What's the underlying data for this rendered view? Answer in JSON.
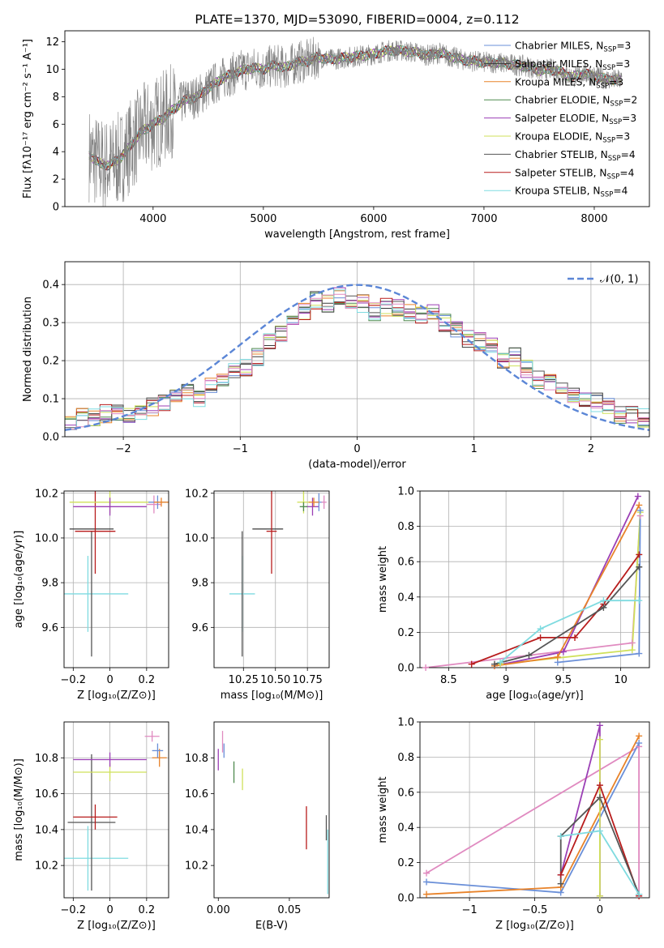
{
  "chart_data": [
    {
      "id": "spectrum",
      "type": "line",
      "title": "PLATE=1370, MJD=53090, FIBERID=0004, z=0.112",
      "xlabel": "wavelength [Angstrom, rest frame]",
      "ylabel": "Flux [fλ10⁻¹⁷ erg cm⁻² s⁻¹ A⁻¹]",
      "xlim": [
        3200,
        8500
      ],
      "ylim": [
        0,
        12.8
      ],
      "xticks": [
        4000,
        5000,
        6000,
        7000,
        8000
      ],
      "yticks": [
        0,
        2,
        4,
        6,
        8,
        10,
        12
      ],
      "grid": false,
      "legend_position": "top-right",
      "data_x": [
        3420,
        3500,
        3600,
        3700,
        3800,
        3900,
        4000,
        4100,
        4200,
        4300,
        4400,
        4500,
        4600,
        4700,
        4800,
        4900,
        5000,
        5100,
        5200,
        5300,
        5400,
        5500,
        5600,
        5700,
        5800,
        5900,
        6000,
        6100,
        6200,
        6300,
        6400,
        6500,
        6600,
        6700,
        6800,
        6900,
        7000,
        7100,
        7200,
        7300,
        7400,
        7500,
        7600,
        7700,
        7800,
        7900,
        8000,
        8100,
        8200
      ],
      "data_y": [
        3.8,
        3.2,
        3.0,
        3.5,
        4.5,
        5.5,
        6.0,
        6.5,
        7.2,
        7.8,
        8.0,
        8.6,
        9.2,
        9.6,
        9.9,
        10.1,
        10.0,
        10.3,
        10.1,
        10.5,
        10.6,
        10.9,
        10.7,
        10.8,
        10.9,
        11.0,
        11.1,
        11.3,
        11.4,
        11.3,
        11.2,
        11.0,
        11.2,
        10.9,
        10.7,
        10.6,
        10.5,
        10.5,
        10.4,
        10.3,
        10.2,
        9.9,
        10.0,
        9.8,
        9.4,
        9.7,
        9.5,
        9.3,
        9.2
      ],
      "series": [
        {
          "name": "Chabrier MILES, N_SSP=3",
          "color": "#6a8fd8"
        },
        {
          "name": "Salpeter MILES, N_SSP=3",
          "color": "#3a3a3a"
        },
        {
          "name": "Kroupa MILES, N_SSP=3",
          "color": "#e8832a"
        },
        {
          "name": "Chabrier ELODIE, N_SSP=2",
          "color": "#4f8a4f"
        },
        {
          "name": "Salpeter ELODIE, N_SSP=3",
          "color": "#9b3fb5"
        },
        {
          "name": "Kroupa ELODIE, N_SSP=3",
          "color": "#cfe05a"
        },
        {
          "name": "Chabrier STELIB, N_SSP=4",
          "color": "#555555"
        },
        {
          "name": "Salpeter STELIB, N_SSP=4",
          "color": "#b81c1c"
        },
        {
          "name": "Kroupa STELIB, N_SSP=4",
          "color": "#7fdbe0"
        }
      ]
    },
    {
      "id": "residuals",
      "type": "line",
      "xlabel": "(data-model)/error",
      "ylabel": "Normed distribution",
      "xlim": [
        -2.5,
        2.5
      ],
      "ylim": [
        0,
        0.46
      ],
      "xticks": [
        -2,
        -1,
        0,
        1,
        2
      ],
      "yticks": [
        0.0,
        0.1,
        0.2,
        0.3,
        0.4
      ],
      "grid": true,
      "legend_label": "𝒩(0, 1)",
      "gaussian_color": "#5b86d6",
      "hist_bins_x": [
        -2.5,
        -2.4,
        -2.3,
        -2.2,
        -2.1,
        -2.0,
        -1.9,
        -1.8,
        -1.7,
        -1.6,
        -1.5,
        -1.4,
        -1.3,
        -1.2,
        -1.1,
        -1.0,
        -0.9,
        -0.8,
        -0.7,
        -0.6,
        -0.5,
        -0.4,
        -0.3,
        -0.2,
        -0.1,
        0.0,
        0.1,
        0.2,
        0.3,
        0.4,
        0.5,
        0.6,
        0.7,
        0.8,
        0.9,
        1.0,
        1.1,
        1.2,
        1.3,
        1.4,
        1.5,
        1.6,
        1.7,
        1.8,
        1.9,
        2.0,
        2.1,
        2.2,
        2.3,
        2.4
      ],
      "hist_base": [
        0.04,
        0.05,
        0.05,
        0.06,
        0.06,
        0.05,
        0.06,
        0.08,
        0.09,
        0.11,
        0.12,
        0.1,
        0.13,
        0.14,
        0.17,
        0.18,
        0.21,
        0.25,
        0.27,
        0.3,
        0.33,
        0.36,
        0.35,
        0.37,
        0.36,
        0.35,
        0.33,
        0.34,
        0.34,
        0.33,
        0.32,
        0.33,
        0.3,
        0.28,
        0.26,
        0.25,
        0.24,
        0.2,
        0.21,
        0.18,
        0.15,
        0.14,
        0.12,
        0.11,
        0.1,
        0.09,
        0.08,
        0.06,
        0.06,
        0.05
      ]
    },
    {
      "id": "age_vs_Z",
      "type": "scatter",
      "xlabel": "Z [log₁₀(Z/Z⊙)]",
      "ylabel": "age  [log₁₀(age/yr)]",
      "xlim": [
        -0.25,
        0.32
      ],
      "ylim": [
        9.42,
        10.21
      ],
      "xticks": [
        -0.2,
        0.0,
        0.2
      ],
      "yticks": [
        9.6,
        9.8,
        10.0,
        10.2
      ],
      "grid": true,
      "points": [
        {
          "x": -0.12,
          "y": 9.75,
          "xerr": 0.22,
          "yerr": 0.17,
          "color": "#7fdbe0"
        },
        {
          "x": -0.1,
          "y": 9.75,
          "xerr": 0.0,
          "yerr": 0.28,
          "color": "#555555"
        },
        {
          "x": -0.1,
          "y": 10.04,
          "xerr": 0.12,
          "yerr": 0.0,
          "color": "#3a3a3a"
        },
        {
          "x": -0.08,
          "y": 10.03,
          "xerr": 0.11,
          "yerr": 0.19,
          "color": "#b81c1c"
        },
        {
          "x": 0.0,
          "y": 10.16,
          "xerr": 0.22,
          "yerr": 0.05,
          "color": "#cfe05a"
        },
        {
          "x": 0.0,
          "y": 10.14,
          "xerr": 0.2,
          "yerr": 0.04,
          "color": "#9b3fb5"
        },
        {
          "x": 0.24,
          "y": 10.15,
          "xerr": 0.04,
          "yerr": 0.04,
          "color": "#e08ac0"
        },
        {
          "x": 0.26,
          "y": 10.16,
          "xerr": 0.05,
          "yerr": 0.03,
          "color": "#6a8fd8"
        },
        {
          "x": 0.28,
          "y": 10.16,
          "xerr": 0.04,
          "yerr": 0.02,
          "color": "#e8832a"
        }
      ]
    },
    {
      "id": "age_vs_mass",
      "type": "scatter",
      "xlabel": "mass [log₁₀(M/M⊙)]",
      "xlim": [
        10.02,
        10.92
      ],
      "ylim": [
        9.42,
        10.21
      ],
      "xticks": [
        10.25,
        10.5,
        10.75
      ],
      "xtick_labels": [
        "10.25",
        "10.50",
        "10.75"
      ],
      "yticks": [
        9.6,
        9.8,
        10.0,
        10.2
      ],
      "grid": true,
      "points": [
        {
          "x": 10.24,
          "y": 9.75,
          "xerr": 0.1,
          "yerr": 0.17,
          "color": "#7fdbe0"
        },
        {
          "x": 10.24,
          "y": 9.75,
          "xerr": 0.0,
          "yerr": 0.28,
          "color": "#555555"
        },
        {
          "x": 10.44,
          "y": 10.04,
          "xerr": 0.12,
          "yerr": 0.0,
          "color": "#3a3a3a"
        },
        {
          "x": 10.47,
          "y": 10.03,
          "xerr": 0.04,
          "yerr": 0.19,
          "color": "#b81c1c"
        },
        {
          "x": 10.72,
          "y": 10.16,
          "xerr": 0.05,
          "yerr": 0.05,
          "color": "#cfe05a"
        },
        {
          "x": 10.79,
          "y": 10.14,
          "xerr": 0.05,
          "yerr": 0.04,
          "color": "#9b3fb5"
        },
        {
          "x": 10.72,
          "y": 10.14,
          "xerr": 0.03,
          "yerr": 0.02,
          "color": "#4f8a4f"
        },
        {
          "x": 10.84,
          "y": 10.16,
          "xerr": 0.03,
          "yerr": 0.04,
          "color": "#6a8fd8"
        },
        {
          "x": 10.8,
          "y": 10.16,
          "xerr": 0.04,
          "yerr": 0.02,
          "color": "#e8832a"
        },
        {
          "x": 10.88,
          "y": 10.16,
          "xerr": 0.02,
          "yerr": 0.03,
          "color": "#e08ac0"
        }
      ]
    },
    {
      "id": "massweight_vs_age",
      "type": "line",
      "xlabel": "age  [log₁₀(age/yr)]",
      "ylabel": "mass weight",
      "xlim": [
        8.25,
        10.25
      ],
      "ylim": [
        0,
        1.0
      ],
      "xticks": [
        8.5,
        9.0,
        9.5,
        10.0
      ],
      "yticks": [
        0.0,
        0.2,
        0.4,
        0.6,
        0.8,
        1.0
      ],
      "grid": true,
      "series": [
        {
          "color": "#e08ac0",
          "points": [
            [
              8.3,
              0.0
            ],
            [
              10.1,
              0.14
            ],
            [
              10.17,
              0.86
            ]
          ]
        },
        {
          "color": "#cfe05a",
          "points": [
            [
              8.95,
              0.02
            ],
            [
              10.1,
              0.1
            ],
            [
              10.17,
              0.88
            ]
          ]
        },
        {
          "color": "#9b3fb5",
          "points": [
            [
              8.9,
              0.01
            ],
            [
              9.5,
              0.09
            ],
            [
              10.15,
              0.97
            ]
          ]
        },
        {
          "color": "#6a8fd8",
          "points": [
            [
              9.45,
              0.03
            ],
            [
              10.16,
              0.08
            ],
            [
              10.17,
              0.89
            ]
          ]
        },
        {
          "color": "#e8832a",
          "points": [
            [
              8.9,
              0.01
            ],
            [
              9.45,
              0.06
            ],
            [
              10.16,
              0.92
            ]
          ]
        },
        {
          "color": "#b81c1c",
          "points": [
            [
              8.7,
              0.02
            ],
            [
              9.3,
              0.17
            ],
            [
              9.6,
              0.17
            ],
            [
              9.85,
              0.36
            ],
            [
              10.16,
              0.64
            ]
          ]
        },
        {
          "color": "#555555",
          "points": [
            [
              8.9,
              0.02
            ],
            [
              9.2,
              0.07
            ],
            [
              9.85,
              0.34
            ],
            [
              10.16,
              0.57
            ]
          ]
        },
        {
          "color": "#7fdbe0",
          "points": [
            [
              8.95,
              0.03
            ],
            [
              9.3,
              0.22
            ],
            [
              9.85,
              0.38
            ],
            [
              10.16,
              0.38
            ]
          ]
        }
      ]
    },
    {
      "id": "mass_vs_Z",
      "type": "scatter",
      "xlabel": "Z [log₁₀(Z/Z⊙)]",
      "ylabel": "mass [log₁₀(M/M⊙)]",
      "xlim": [
        -0.25,
        0.32
      ],
      "ylim": [
        10.02,
        11.0
      ],
      "xticks": [
        -0.2,
        0.0,
        0.2
      ],
      "yticks": [
        10.2,
        10.4,
        10.6,
        10.8
      ],
      "grid": true,
      "points": [
        {
          "x": -0.12,
          "y": 10.24,
          "xerr": 0.22,
          "yerr": 0.18,
          "color": "#7fdbe0"
        },
        {
          "x": -0.1,
          "y": 10.44,
          "xerr": 0.13,
          "yerr": 0.38,
          "color": "#555555"
        },
        {
          "x": -0.08,
          "y": 10.47,
          "xerr": 0.12,
          "yerr": 0.07,
          "color": "#b81c1c"
        },
        {
          "x": 0.0,
          "y": 10.72,
          "xerr": 0.2,
          "yerr": 0.05,
          "color": "#cfe05a"
        },
        {
          "x": 0.0,
          "y": 10.79,
          "xerr": 0.2,
          "yerr": 0.04,
          "color": "#9b3fb5"
        },
        {
          "x": 0.27,
          "y": 10.8,
          "xerr": 0.04,
          "yerr": 0.05,
          "color": "#e8832a"
        },
        {
          "x": 0.26,
          "y": 10.84,
          "xerr": 0.03,
          "yerr": 0.04,
          "color": "#6a8fd8"
        },
        {
          "x": 0.23,
          "y": 10.92,
          "xerr": 0.04,
          "yerr": 0.03,
          "color": "#e08ac0"
        }
      ]
    },
    {
      "id": "mass_vs_ebv",
      "type": "scatter",
      "xlabel": "E(B-V)",
      "xlim": [
        -0.003,
        0.078
      ],
      "ylim": [
        10.02,
        11.0
      ],
      "xticks": [
        0.0,
        0.05
      ],
      "xtick_labels": [
        "0.00",
        "0.05"
      ],
      "yticks": [
        10.2,
        10.4,
        10.6,
        10.8
      ],
      "grid": false,
      "points": [
        {
          "x": 0.0,
          "y": 10.79,
          "xerr": 0.0,
          "yerr": 0.06,
          "color": "#9b3fb5"
        },
        {
          "x": 0.003,
          "y": 10.89,
          "xerr": 0.0,
          "yerr": 0.06,
          "color": "#e08ac0"
        },
        {
          "x": 0.004,
          "y": 10.84,
          "xerr": 0.0,
          "yerr": 0.04,
          "color": "#6a8fd8"
        },
        {
          "x": 0.011,
          "y": 10.72,
          "xerr": 0.0,
          "yerr": 0.06,
          "color": "#4f8a4f"
        },
        {
          "x": 0.017,
          "y": 10.68,
          "xerr": 0.0,
          "yerr": 0.06,
          "color": "#cfe05a"
        },
        {
          "x": 0.062,
          "y": 10.41,
          "xerr": 0.0,
          "yerr": 0.12,
          "color": "#b81c1c"
        },
        {
          "x": 0.076,
          "y": 10.41,
          "xerr": 0.0,
          "yerr": 0.07,
          "color": "#555555"
        },
        {
          "x": 0.077,
          "y": 10.22,
          "xerr": 0.0,
          "yerr": 0.18,
          "color": "#7fdbe0"
        }
      ]
    },
    {
      "id": "massweight_vs_Z",
      "type": "line",
      "xlabel": "Z [log₁₀(Z/Z⊙)]",
      "ylabel": "mass weight",
      "xlim": [
        -1.38,
        0.38
      ],
      "ylim": [
        0,
        1.0
      ],
      "xticks": [
        -1.0,
        -0.5,
        0.0
      ],
      "yticks": [
        0.0,
        0.2,
        0.4,
        0.6,
        0.8,
        1.0
      ],
      "grid": true,
      "series": [
        {
          "color": "#e08ac0",
          "points": [
            [
              -1.33,
              0.14
            ],
            [
              0.3,
              0.86
            ],
            [
              0.3,
              0.01
            ]
          ]
        },
        {
          "color": "#6a8fd8",
          "points": [
            [
              -1.33,
              0.09
            ],
            [
              -0.3,
              0.03
            ],
            [
              0.3,
              0.88
            ]
          ]
        },
        {
          "color": "#e8832a",
          "points": [
            [
              -1.33,
              0.02
            ],
            [
              -0.3,
              0.06
            ],
            [
              0.3,
              0.92
            ]
          ]
        },
        {
          "color": "#9b3fb5",
          "points": [
            [
              -0.3,
              0.13
            ],
            [
              0.0,
              0.98
            ],
            [
              0.0,
              0.01
            ]
          ]
        },
        {
          "color": "#b81c1c",
          "points": [
            [
              -0.3,
              0.13
            ],
            [
              0.0,
              0.64
            ],
            [
              0.3,
              0.01
            ]
          ]
        },
        {
          "color": "#555555",
          "points": [
            [
              -0.3,
              0.08
            ],
            [
              -0.3,
              0.35
            ],
            [
              0.0,
              0.57
            ],
            [
              0.3,
              0.02
            ]
          ]
        },
        {
          "color": "#7fdbe0",
          "points": [
            [
              -0.3,
              0.35
            ],
            [
              0.0,
              0.38
            ],
            [
              0.3,
              0.02
            ]
          ]
        },
        {
          "color": "#cfe05a",
          "points": [
            [
              0.0,
              0.9
            ],
            [
              0.0,
              0.01
            ]
          ]
        }
      ]
    }
  ]
}
